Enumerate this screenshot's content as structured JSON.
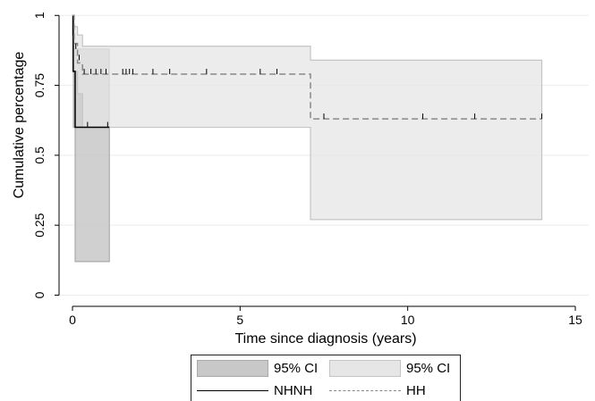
{
  "chart_data": {
    "type": "line",
    "subtype": "kaplan-meier step curve with 95% confidence bands",
    "xlabel": "Time since diagnosis (years)",
    "ylabel": "Cumulative percentage",
    "xlim": [
      -0.4,
      15.4
    ],
    "ylim": [
      -0.04,
      1.02
    ],
    "x_ticks": [
      0,
      5,
      10,
      15
    ],
    "x_tick_labels": [
      "0",
      "5",
      "10",
      "15"
    ],
    "y_ticks": [
      0,
      0.25,
      0.5,
      0.75,
      1
    ],
    "y_tick_labels": [
      "0",
      "0.25",
      "0.5",
      "0.75",
      "1"
    ],
    "grid": "horizontal",
    "legend_position": "bottom-center",
    "series": [
      {
        "name": "NHNH",
        "style": "solid",
        "color": "#000000",
        "steps": [
          [
            0,
            1.0
          ],
          [
            0.02,
            0.8
          ],
          [
            0.08,
            0.6
          ],
          [
            1.1,
            0.6
          ]
        ],
        "censor_x": [
          0.45,
          1.05
        ],
        "censor_y": [
          0.6,
          0.6
        ],
        "ci_label": "95% CI",
        "ci_color": "#c8c8c8",
        "ci_steps": [
          [
            0,
            0.93,
            1.0
          ],
          [
            0.03,
            0.6,
            0.88
          ],
          [
            0.08,
            0.12,
            0.88
          ],
          [
            1.1,
            0.12,
            0.88
          ]
        ]
      },
      {
        "name": "HH",
        "style": "dashed",
        "color": "#888888",
        "steps": [
          [
            0,
            1.0
          ],
          [
            0.05,
            0.9
          ],
          [
            0.15,
            0.83
          ],
          [
            0.3,
            0.79
          ],
          [
            7.1,
            0.63
          ],
          [
            14.0,
            0.63
          ]
        ],
        "censor_x": [
          0.1,
          0.2,
          0.35,
          0.55,
          0.7,
          0.85,
          1.0,
          1.5,
          1.6,
          1.7,
          1.8,
          2.4,
          2.9,
          4.0,
          5.6,
          6.1,
          7.5,
          10.45,
          12.0,
          14.0
        ],
        "censor_y": [
          0.88,
          0.84,
          0.79,
          0.79,
          0.79,
          0.79,
          0.79,
          0.79,
          0.79,
          0.79,
          0.79,
          0.79,
          0.79,
          0.79,
          0.79,
          0.79,
          0.63,
          0.63,
          0.63,
          0.63
        ],
        "ci_label": "95% CI",
        "ci_color": "#e6e6e6",
        "ci_steps": [
          [
            0,
            0.96,
            1.0
          ],
          [
            0.05,
            0.8,
            0.96
          ],
          [
            0.15,
            0.72,
            0.93
          ],
          [
            0.3,
            0.6,
            0.89
          ],
          [
            7.1,
            0.27,
            0.84
          ],
          [
            14.0,
            0.27,
            0.84
          ]
        ]
      }
    ]
  },
  "legend": {
    "items": [
      {
        "label": "95% CI",
        "kind": "fill",
        "color": "#c8c8c8"
      },
      {
        "label": "95% CI",
        "kind": "fill",
        "color": "#e6e6e6"
      },
      {
        "label": "NHNH",
        "kind": "line",
        "style": "solid",
        "color": "#000000"
      },
      {
        "label": "HH",
        "kind": "line",
        "style": "dashed",
        "color": "#888888"
      }
    ]
  }
}
